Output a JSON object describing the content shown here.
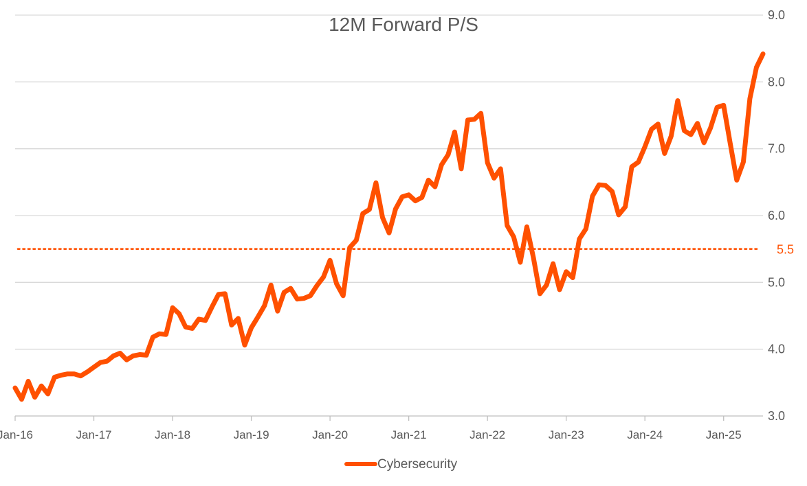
{
  "chart_data": {
    "type": "line",
    "title": "12M Forward P/S",
    "xlabel": "",
    "ylabel": "",
    "ylim": [
      3.0,
      9.0
    ],
    "y_ticks": [
      "3.0",
      "4.0",
      "5.0",
      "6.0",
      "7.0",
      "8.0",
      "9.0"
    ],
    "x_ticks": [
      "Jan-16",
      "Jan-17",
      "Jan-18",
      "Jan-19",
      "Jan-20",
      "Jan-21",
      "Jan-22",
      "Jan-23",
      "Jan-24",
      "Jan-25"
    ],
    "grid": "horizontal",
    "legend_position": "bottom",
    "series_color": "#FF5000",
    "reference_line": {
      "value": 5.5,
      "label": "5.5",
      "style": "dotted"
    },
    "series": [
      {
        "name": "Cybersecurity",
        "x": [
          "2016-01",
          "2016-02",
          "2016-03",
          "2016-04",
          "2016-05",
          "2016-06",
          "2016-07",
          "2016-08",
          "2016-09",
          "2016-10",
          "2016-11",
          "2016-12",
          "2017-01",
          "2017-02",
          "2017-03",
          "2017-04",
          "2017-05",
          "2017-06",
          "2017-07",
          "2017-08",
          "2017-09",
          "2017-10",
          "2017-11",
          "2017-12",
          "2018-01",
          "2018-02",
          "2018-03",
          "2018-04",
          "2018-05",
          "2018-06",
          "2018-07",
          "2018-08",
          "2018-09",
          "2018-10",
          "2018-11",
          "2018-12",
          "2019-01",
          "2019-02",
          "2019-03",
          "2019-04",
          "2019-05",
          "2019-06",
          "2019-07",
          "2019-08",
          "2019-09",
          "2019-10",
          "2019-11",
          "2019-12",
          "2020-01",
          "2020-02",
          "2020-03",
          "2020-04",
          "2020-05",
          "2020-06",
          "2020-07",
          "2020-08",
          "2020-09",
          "2020-10",
          "2020-11",
          "2020-12",
          "2021-01",
          "2021-02",
          "2021-03",
          "2021-04",
          "2021-05",
          "2021-06",
          "2021-07",
          "2021-08",
          "2021-09",
          "2021-10",
          "2021-11",
          "2021-12",
          "2022-01",
          "2022-02",
          "2022-03",
          "2022-04",
          "2022-05",
          "2022-06",
          "2022-07",
          "2022-08",
          "2022-09",
          "2022-10",
          "2022-11",
          "2022-12",
          "2023-01",
          "2023-02",
          "2023-03",
          "2023-04",
          "2023-05",
          "2023-06",
          "2023-07",
          "2023-08",
          "2023-09",
          "2023-10",
          "2023-11",
          "2023-12",
          "2024-01",
          "2024-02",
          "2024-03",
          "2024-04",
          "2024-05",
          "2024-06",
          "2024-07",
          "2024-08",
          "2024-09",
          "2024-10",
          "2024-11",
          "2024-12",
          "2025-01",
          "2025-02",
          "2025-03",
          "2025-04",
          "2025-05",
          "2025-06",
          "2025-07"
        ],
        "values": [
          3.42,
          3.25,
          3.52,
          3.28,
          3.45,
          3.33,
          3.58,
          3.61,
          3.63,
          3.63,
          3.6,
          3.66,
          3.73,
          3.8,
          3.82,
          3.9,
          3.94,
          3.84,
          3.9,
          3.92,
          3.91,
          4.18,
          4.23,
          4.22,
          4.62,
          4.53,
          4.33,
          4.31,
          4.45,
          4.43,
          4.63,
          4.82,
          4.83,
          4.36,
          4.46,
          4.06,
          4.32,
          4.48,
          4.65,
          4.96,
          4.57,
          4.85,
          4.91,
          4.75,
          4.76,
          4.8,
          4.95,
          5.08,
          5.33,
          4.98,
          4.8,
          5.52,
          5.63,
          6.03,
          6.09,
          6.49,
          5.97,
          5.74,
          6.1,
          6.28,
          6.31,
          6.22,
          6.27,
          6.53,
          6.43,
          6.76,
          6.91,
          7.25,
          6.7,
          7.43,
          7.44,
          7.53,
          6.79,
          6.56,
          6.7,
          5.85,
          5.68,
          5.3,
          5.83,
          5.37,
          4.83,
          4.96,
          5.28,
          4.89,
          5.16,
          5.07,
          5.65,
          5.8,
          6.29,
          6.46,
          6.45,
          6.36,
          6.01,
          6.13,
          6.73,
          6.8,
          7.03,
          7.29,
          7.37,
          6.93,
          7.19,
          7.72,
          7.27,
          7.21,
          7.38,
          7.09,
          7.31,
          7.62,
          7.65,
          7.08,
          6.53,
          6.8,
          7.75,
          8.22,
          8.42
        ]
      }
    ]
  }
}
